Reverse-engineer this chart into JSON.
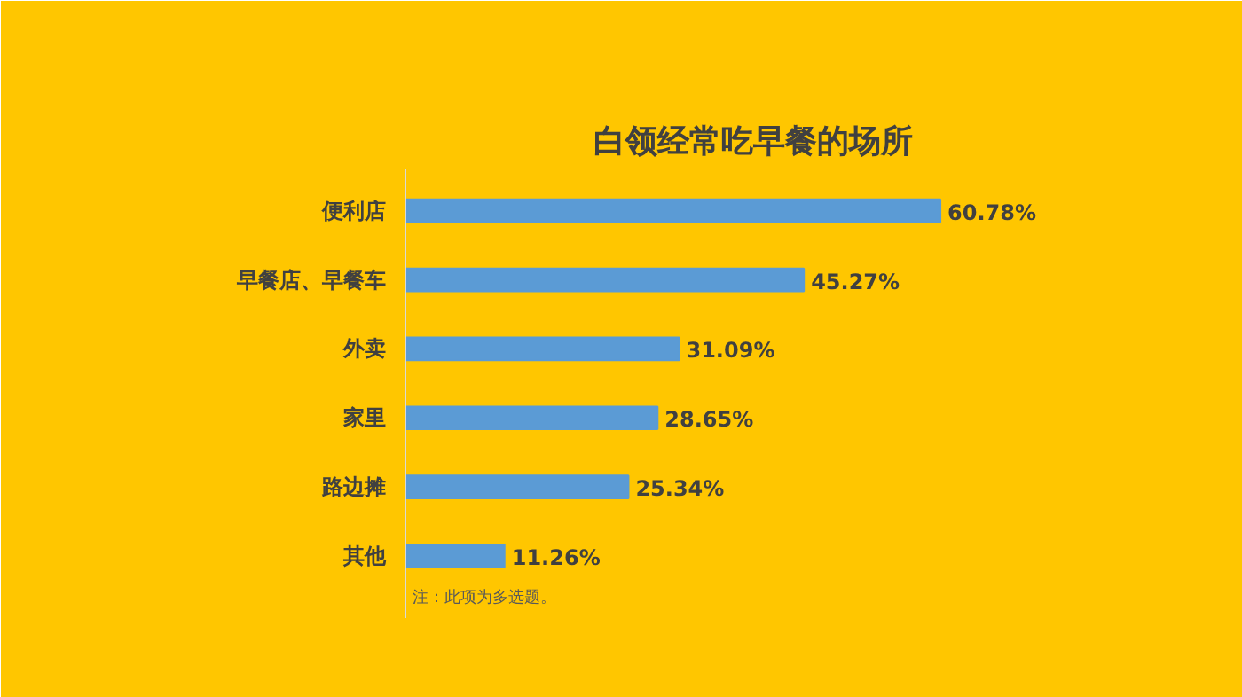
{
  "chart_data": {
    "type": "bar",
    "orientation": "horizontal",
    "title": "白领经常吃早餐的场所",
    "categories": [
      "便利店",
      "早餐店、早餐车",
      "外卖",
      "家里",
      "路边摊",
      "其他"
    ],
    "values": [
      60.78,
      45.27,
      31.09,
      28.65,
      25.34,
      11.26
    ],
    "color": "#5b9bd5",
    "value_labels": [
      "60.78%",
      "45.27%",
      "31.09%",
      "28.65%",
      "25.34%",
      "11.26%"
    ],
    "annotations": [
      "注：此项为多选题。"
    ],
    "grid": false
  }
}
